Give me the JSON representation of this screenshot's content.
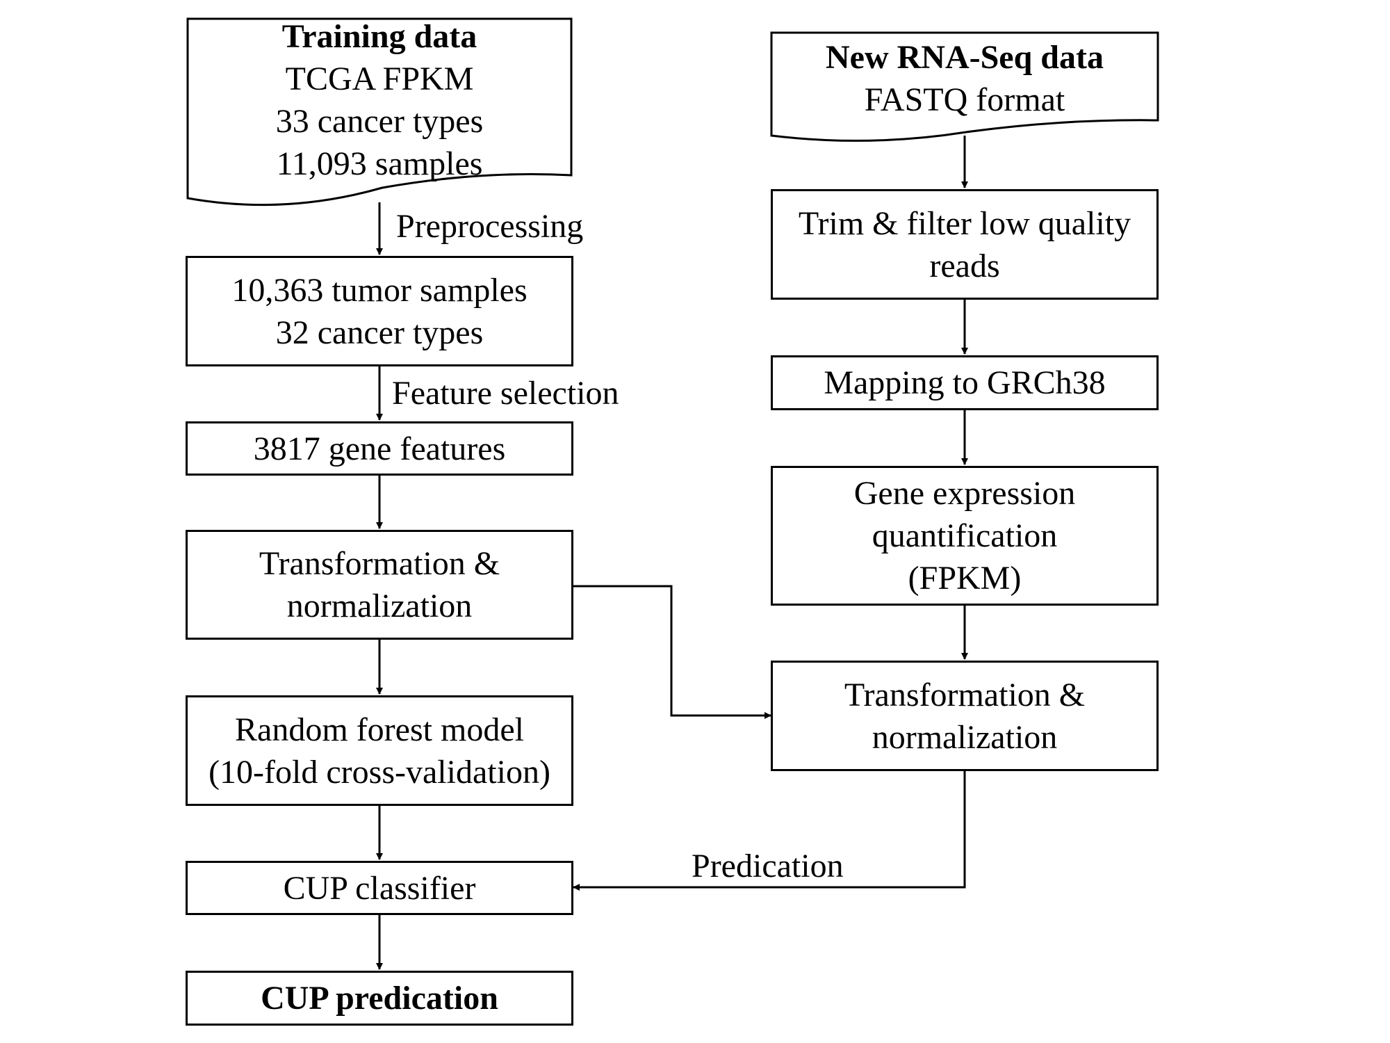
{
  "training_data": {
    "title": "Training data",
    "lines": [
      "TCGA FPKM",
      "33 cancer types",
      "11,093 samples"
    ]
  },
  "preprocessing_label": "Preprocessing",
  "tumor_samples": {
    "lines": [
      "10,363 tumor samples",
      "32 cancer types"
    ]
  },
  "feature_selection_label": "Feature selection",
  "gene_features": {
    "text": "3817 gene features"
  },
  "left_transform": {
    "lines": [
      "Transformation &",
      "normalization"
    ]
  },
  "random_forest": {
    "lines": [
      "Random forest model",
      "(10-fold cross-validation)"
    ]
  },
  "cup_classifier": {
    "text": "CUP classifier"
  },
  "cup_prediction": {
    "text": "CUP predication"
  },
  "new_data": {
    "title": "New RNA-Seq data",
    "lines": [
      "FASTQ format"
    ]
  },
  "trim_filter": {
    "lines": [
      "Trim & filter low quality",
      "reads"
    ]
  },
  "mapping": {
    "text": "Mapping to GRCh38"
  },
  "gene_expression": {
    "lines": [
      "Gene expression",
      "quantification",
      "(FPKM)"
    ]
  },
  "right_transform": {
    "lines": [
      "Transformation &",
      "normalization"
    ]
  },
  "predication_label": "Predication",
  "colors": {
    "stroke": "#000000",
    "background": "#ffffff"
  }
}
